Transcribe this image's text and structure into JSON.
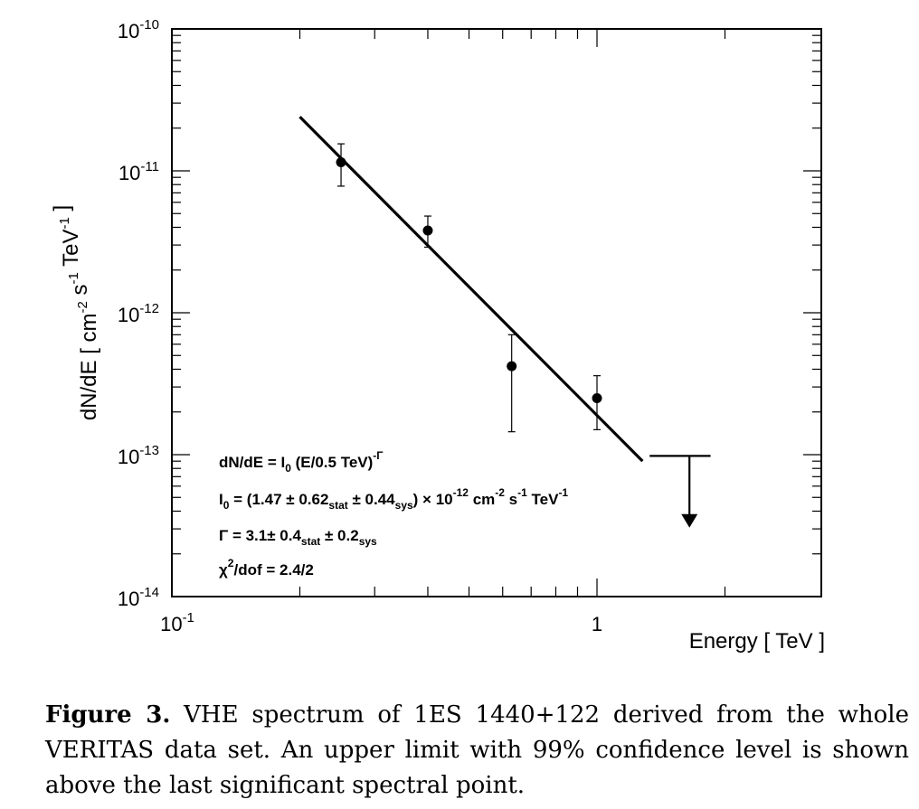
{
  "chart_data": {
    "type": "scatter",
    "xlabel": "Energy [ TeV ]",
    "ylabel": "dN/dE [ cm^-2 s^-1 TeV^-1 ]",
    "x_scale": "log",
    "y_scale": "log",
    "xlim": [
      0.1,
      2.5
    ],
    "ylim": [
      1e-14,
      1e-10
    ],
    "x_tick_labels": [
      {
        "value": 0.1,
        "base": "10",
        "exp": "-1"
      },
      {
        "value": 1,
        "base": "1",
        "exp": ""
      }
    ],
    "y_tick_labels": [
      {
        "value": 1e-10,
        "base": "10",
        "exp": "-10"
      },
      {
        "value": 1e-11,
        "base": "10",
        "exp": "-11"
      },
      {
        "value": 1e-12,
        "base": "10",
        "exp": "-12"
      },
      {
        "value": 1e-13,
        "base": "10",
        "exp": "-13"
      },
      {
        "value": 1e-14,
        "base": "10",
        "exp": "-14"
      }
    ],
    "points": [
      {
        "x": 0.25,
        "y": 1.15e-11,
        "y_low": 7.8e-12,
        "y_high": 1.55e-11
      },
      {
        "x": 0.4,
        "y": 3.8e-12,
        "y_low": 2.9e-12,
        "y_high": 4.8e-12
      },
      {
        "x": 0.63,
        "y": 4.2e-13,
        "y_low": 1.45e-13,
        "y_high": 7e-13
      },
      {
        "x": 1.0,
        "y": 2.5e-13,
        "y_low": 1.5e-13,
        "y_high": 3.6e-13
      }
    ],
    "upper_limit": {
      "x": 1.65,
      "x_low": 1.33,
      "x_high": 1.85,
      "y": 9.8e-14,
      "y_arrow_end": 3.2e-14
    },
    "fit_line": {
      "x": [
        0.2,
        1.28
      ],
      "y": [
        2.4e-11,
        9e-14
      ]
    },
    "annotations": {
      "line1": {
        "a": "dN/dE = I",
        "a_sub": "0",
        "b": " (E/0.5 TeV)",
        "b_sup": "-Γ"
      },
      "line2": {
        "a": "I",
        "a_sub": "0",
        "b": " = (1.47 ± 0.62",
        "b_sub": "stat",
        "c": " ± 0.44",
        "c_sub": "sys",
        "d": ") × 10",
        "d_sup": "-12",
        "e": " cm",
        "e_sup": "-2",
        "f": " s",
        "f_sup": "-1",
        "g": " TeV",
        "g_sup": "-1"
      },
      "line3": {
        "a": "Γ = 3.1± 0.4",
        "a_sub": "stat",
        "b": " ± 0.2",
        "b_sub": "sys"
      },
      "line4": {
        "a": "χ",
        "a_sup": "2",
        "b": "/dof = 2.4/2"
      }
    }
  },
  "caption": {
    "label": "Figure 3.",
    "text": "VHE spectrum of 1ES 1440+122 derived from the whole VERITAS data set. An upper limit with 99% confidence level is shown above the last significant spectral point."
  }
}
